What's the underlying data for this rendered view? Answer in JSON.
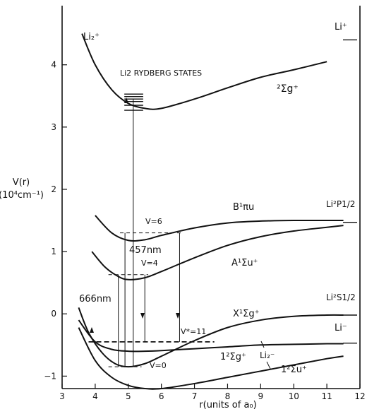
{
  "chart_data": {
    "type": "line",
    "xlabel": "r(units of a₀)",
    "ylabel_line1": "V(r)",
    "ylabel_line2": "(10⁴cm⁻¹)",
    "xlim": [
      3,
      12
    ],
    "ylim": [
      -1.2,
      4.95
    ],
    "xticks": [
      3,
      4,
      5,
      6,
      7,
      8,
      9,
      10,
      11,
      12
    ],
    "yticks": [
      -1,
      0,
      1,
      2,
      3,
      4
    ],
    "series": [
      {
        "name": "Li₂⁺ ²Σg⁺",
        "x": [
          3.6,
          4.0,
          4.5,
          5.0,
          5.5,
          6.0,
          7.0,
          8.0,
          9.0,
          10.0,
          11.0
        ],
        "y": [
          4.5,
          4.0,
          3.6,
          3.38,
          3.3,
          3.3,
          3.45,
          3.63,
          3.8,
          3.92,
          4.05
        ]
      },
      {
        "name": "B¹Πu",
        "x": [
          4.0,
          4.5,
          5.0,
          5.5,
          6.0,
          7.0,
          8.0,
          9.0,
          10.0,
          11.0,
          11.5
        ],
        "y": [
          1.58,
          1.3,
          1.18,
          1.19,
          1.26,
          1.38,
          1.46,
          1.49,
          1.5,
          1.5,
          1.5
        ]
      },
      {
        "name": "A¹Σu⁺",
        "x": [
          3.9,
          4.3,
          4.7,
          5.0,
          5.5,
          6.0,
          7.0,
          8.0,
          9.0,
          10.0,
          11.0,
          11.5
        ],
        "y": [
          1.0,
          0.75,
          0.6,
          0.55,
          0.58,
          0.68,
          0.9,
          1.1,
          1.24,
          1.33,
          1.39,
          1.42
        ]
      },
      {
        "name": "X¹Σg⁺",
        "x": [
          3.5,
          3.8,
          4.2,
          4.6,
          5.0,
          5.5,
          6.0,
          7.0,
          8.0,
          9.0,
          10.0,
          11.0,
          11.5
        ],
        "y": [
          0.1,
          -0.3,
          -0.62,
          -0.8,
          -0.85,
          -0.8,
          -0.68,
          -0.43,
          -0.22,
          -0.1,
          -0.04,
          -0.02,
          -0.02
        ]
      },
      {
        "name": "1²Σg⁺",
        "x": [
          3.5,
          4.0,
          4.5,
          5.0,
          5.5,
          6.0,
          7.0,
          8.0,
          9.0,
          10.0,
          11.0,
          11.5
        ],
        "y": [
          -0.1,
          -0.45,
          -0.57,
          -0.6,
          -0.6,
          -0.59,
          -0.56,
          -0.53,
          -0.5,
          -0.49,
          -0.48,
          -0.48
        ]
      },
      {
        "name": "1²Σu⁺",
        "x": [
          3.5,
          4.0,
          4.5,
          5.0,
          5.5,
          6.0,
          7.0,
          8.0,
          9.0,
          10.0,
          11.0,
          11.5
        ],
        "y": [
          -0.22,
          -0.75,
          -1.02,
          -1.15,
          -1.2,
          -1.2,
          -1.12,
          -1.02,
          -0.92,
          -0.82,
          -0.72,
          -0.68
        ]
      }
    ],
    "rydberg_levels": [
      3.53,
      3.49,
      3.45,
      3.41,
      3.35,
      3.27
    ],
    "vertical_lines": [
      {
        "x": 4.7,
        "y1": -0.85,
        "y2": 0.63
      },
      {
        "x": 4.9,
        "y1": -0.85,
        "y2": 1.3
      },
      {
        "x": 5.15,
        "y1": -0.85,
        "y2": 3.45
      },
      {
        "x": 5.5,
        "y1": -0.45,
        "y2": 0.63
      },
      {
        "x": 6.55,
        "y1": -0.45,
        "y2": 1.3
      }
    ],
    "dashed_levels": [
      {
        "y": 1.3,
        "x1": 4.75,
        "x2": 6.6
      },
      {
        "y": 0.63,
        "x1": 4.4,
        "x2": 5.6
      },
      {
        "y": -0.45,
        "x1": 3.8,
        "x2": 7.6
      },
      {
        "y": -0.85,
        "x1": 4.4,
        "x2": 5.4
      }
    ],
    "dissociation_lines": [
      {
        "y": 4.4,
        "label": "Li⁺"
      },
      {
        "y": 1.47,
        "label": "Li²P1/2"
      },
      {
        "y": -0.02,
        "label": "Li²S1/2"
      },
      {
        "y": -0.47,
        "label": "Li⁻"
      }
    ]
  },
  "annotations": {
    "li2plus": "Li₂⁺",
    "rydberg": "Li2 RYDBERG STATES",
    "sigma_g_plus": "²Σg⁺",
    "li_plus": "Li⁺",
    "b_state": "B¹πu",
    "li2p": "Li²P1/2",
    "v6": "V=6",
    "nm457": "457nm",
    "a_state": "A¹Σu⁺",
    "v4": "V=4",
    "li2s": "Li²S1/2",
    "nm666": "666nm",
    "x_state": "X¹Σg⁺",
    "vstar11": "V*=11",
    "li_minus": "Li⁻",
    "one_sigma_g": "1²Σg⁺",
    "li2minus": "Li₂⁻",
    "v0": "V=0",
    "one_sigma_u": "1²Σu⁺"
  }
}
